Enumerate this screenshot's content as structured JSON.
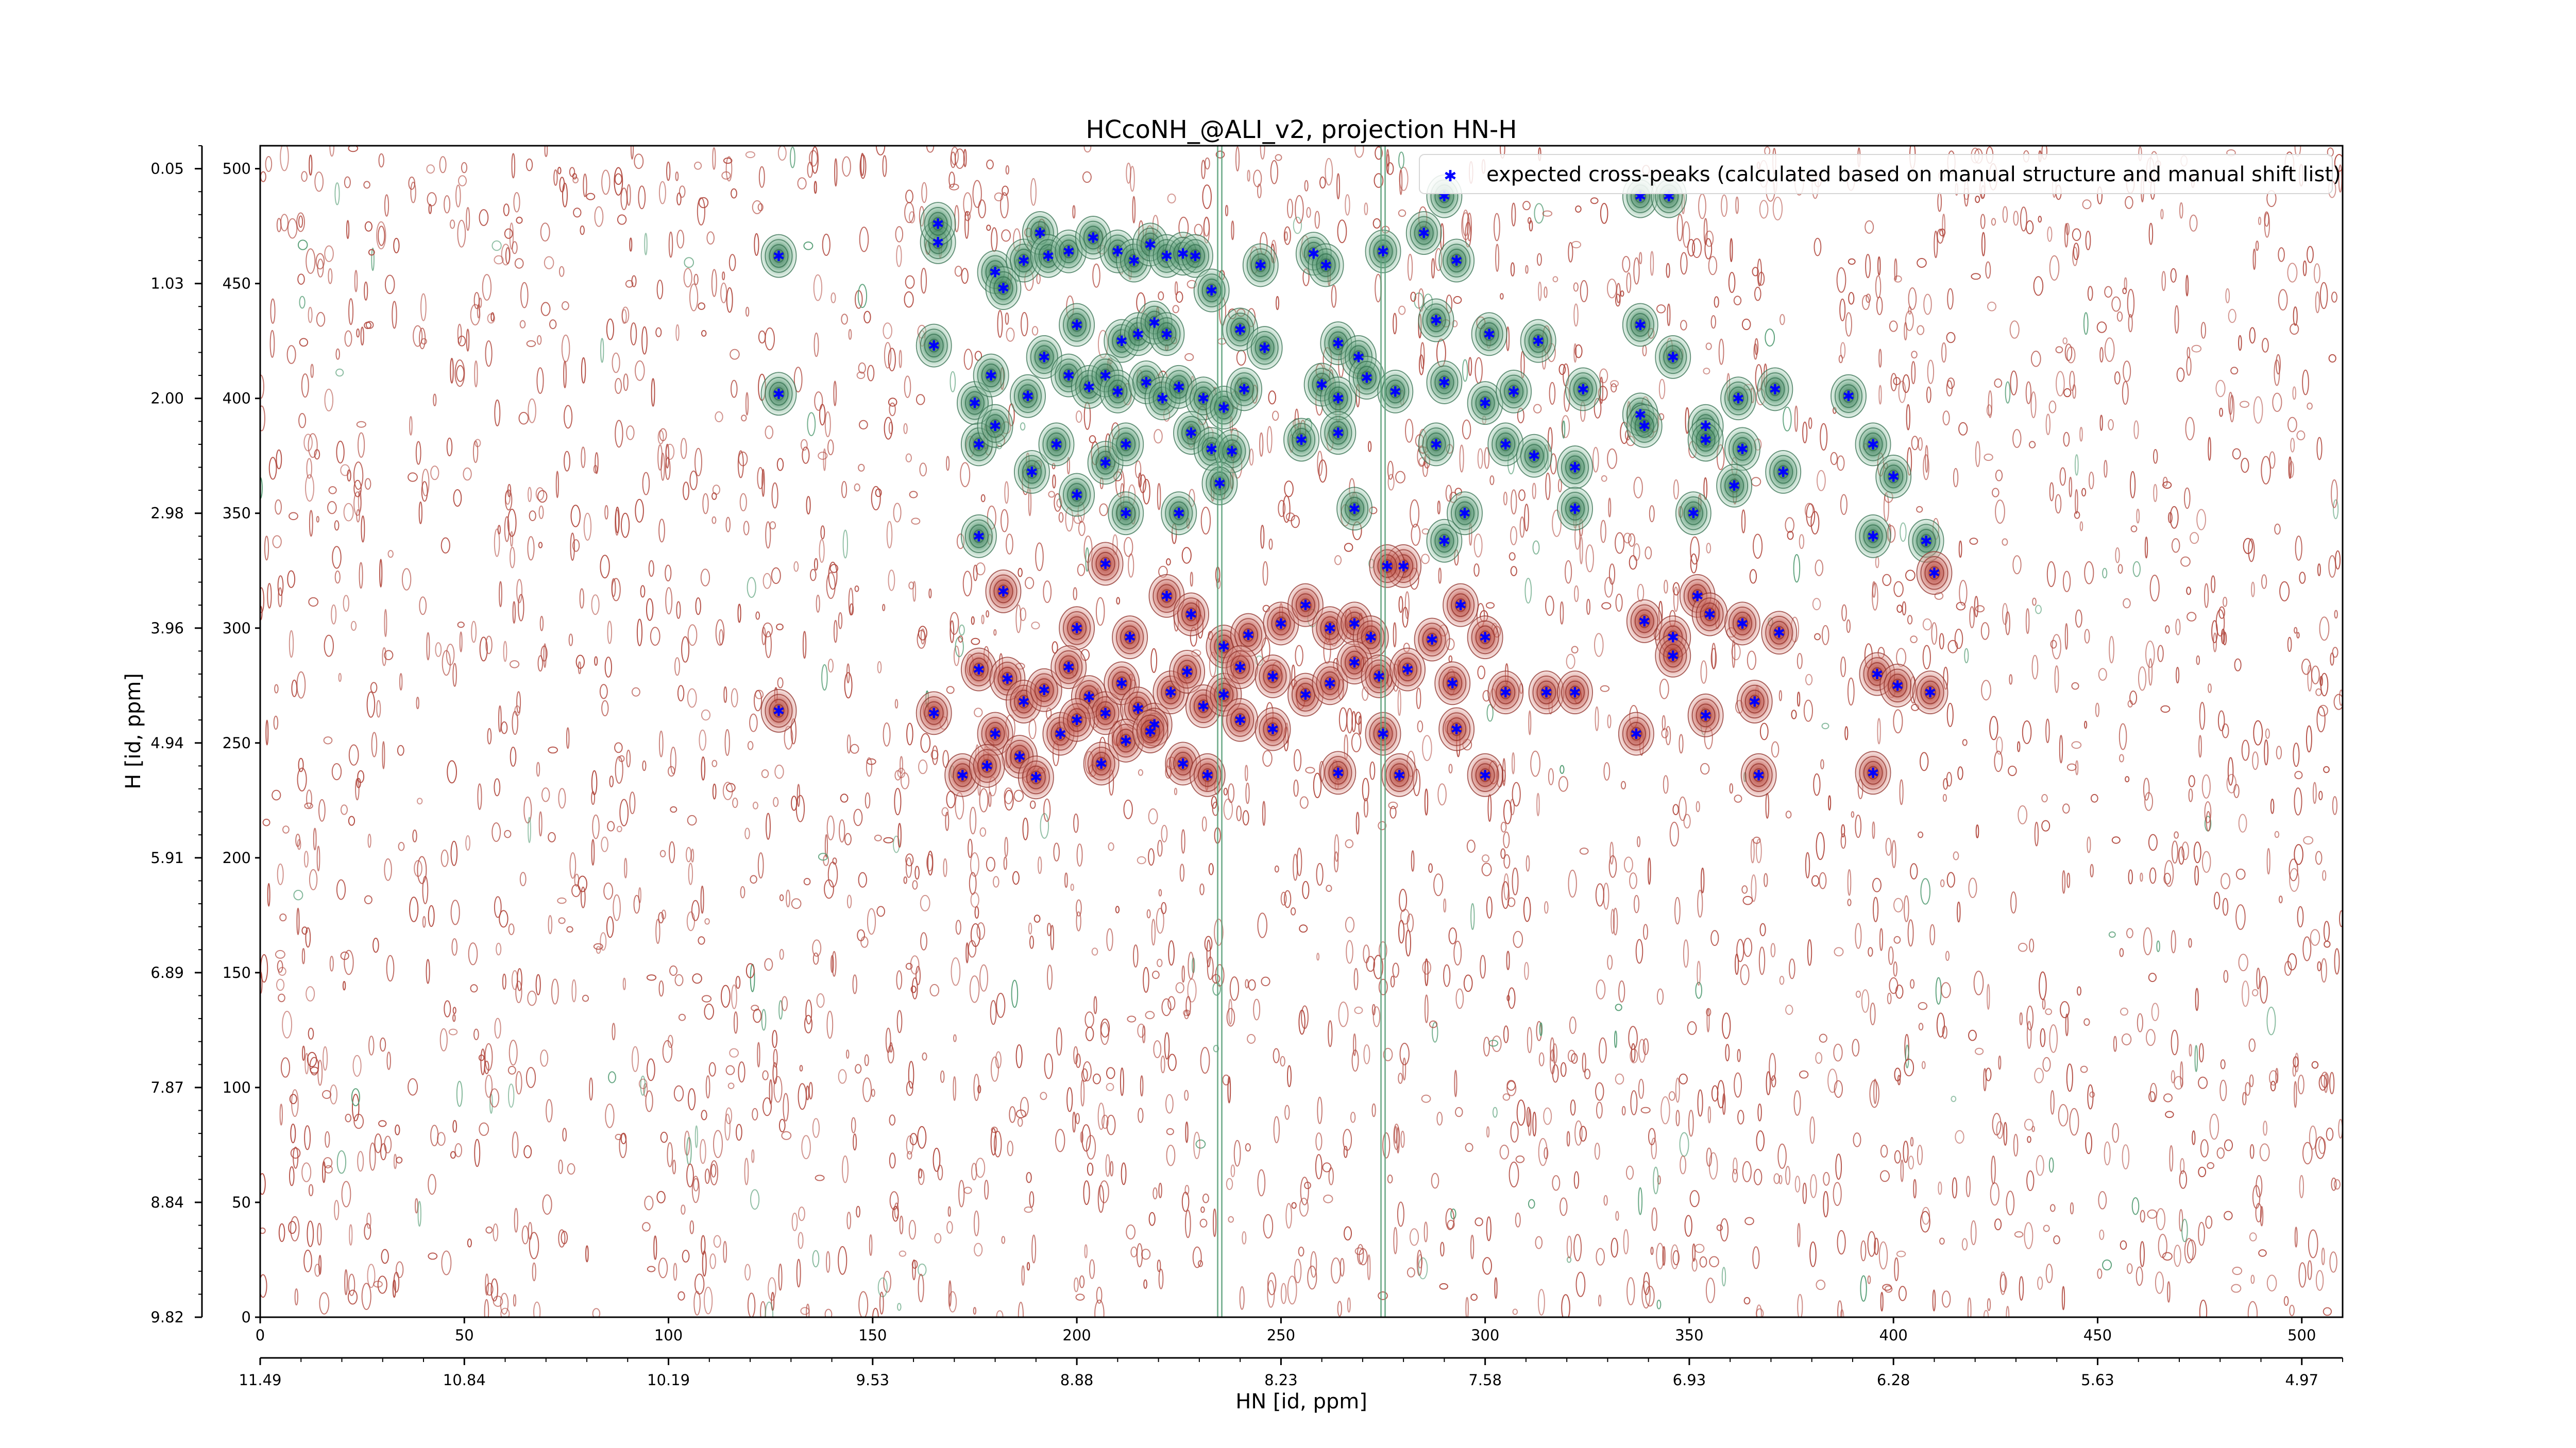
{
  "chart_data": {
    "type": "scatter",
    "title": "HCcoNH_@ALI_v2, projection HN-H",
    "xlabel": "HN [id, ppm]",
    "ylabel": "H [id, ppm]",
    "xlim": [
      0,
      510
    ],
    "ylim": [
      0,
      510
    ],
    "x_index_ticks": [
      0,
      50,
      100,
      150,
      200,
      250,
      300,
      350,
      400,
      450,
      500
    ],
    "x_ppm_ticks": [
      {
        "value": 0,
        "label": "11.49"
      },
      {
        "value": 50,
        "label": "10.84"
      },
      {
        "value": 100,
        "label": "10.19"
      },
      {
        "value": 150,
        "label": "9.53"
      },
      {
        "value": 200,
        "label": "8.88"
      },
      {
        "value": 250,
        "label": "8.23"
      },
      {
        "value": 300,
        "label": "7.58"
      },
      {
        "value": 350,
        "label": "6.93"
      },
      {
        "value": 400,
        "label": "6.28"
      },
      {
        "value": 450,
        "label": "5.63"
      },
      {
        "value": 500,
        "label": "4.97"
      }
    ],
    "y_index_ticks": [
      0,
      50,
      100,
      150,
      200,
      250,
      300,
      350,
      400,
      450,
      500
    ],
    "y_ppm_ticks": [
      {
        "value": 0,
        "label": "9.82"
      },
      {
        "value": 50,
        "label": "8.84"
      },
      {
        "value": 100,
        "label": "7.87"
      },
      {
        "value": 150,
        "label": "6.89"
      },
      {
        "value": 200,
        "label": "5.91"
      },
      {
        "value": 250,
        "label": "4.94"
      },
      {
        "value": 300,
        "label": "3.96"
      },
      {
        "value": 350,
        "label": "2.98"
      },
      {
        "value": 400,
        "label": "2.00"
      },
      {
        "value": 450,
        "label": "1.03"
      },
      {
        "value": 500,
        "label": "0.05"
      }
    ],
    "legend": {
      "label": "expected cross-peaks (calculated based on manual structure and manual shift list)",
      "placement": "top-right"
    },
    "colors": {
      "marker": "#0000ff",
      "positive_contour": "#a83228",
      "negative_contour": "#2e8b57"
    },
    "expected_peaks": [
      {
        "x": 127,
        "y": 462
      },
      {
        "x": 166,
        "y": 468
      },
      {
        "x": 166,
        "y": 476
      },
      {
        "x": 180,
        "y": 455
      },
      {
        "x": 187,
        "y": 460
      },
      {
        "x": 191,
        "y": 472
      },
      {
        "x": 193,
        "y": 462
      },
      {
        "x": 198,
        "y": 464
      },
      {
        "x": 204,
        "y": 470
      },
      {
        "x": 210,
        "y": 464
      },
      {
        "x": 214,
        "y": 460
      },
      {
        "x": 218,
        "y": 467
      },
      {
        "x": 222,
        "y": 462
      },
      {
        "x": 226,
        "y": 463
      },
      {
        "x": 229,
        "y": 462
      },
      {
        "x": 233,
        "y": 447
      },
      {
        "x": 245,
        "y": 458
      },
      {
        "x": 258,
        "y": 463
      },
      {
        "x": 261,
        "y": 458
      },
      {
        "x": 275,
        "y": 464
      },
      {
        "x": 285,
        "y": 472
      },
      {
        "x": 293,
        "y": 460
      },
      {
        "x": 338,
        "y": 488
      },
      {
        "x": 345,
        "y": 488
      },
      {
        "x": 290,
        "y": 488
      },
      {
        "x": 182,
        "y": 448
      },
      {
        "x": 200,
        "y": 432
      },
      {
        "x": 211,
        "y": 425
      },
      {
        "x": 215,
        "y": 428
      },
      {
        "x": 219,
        "y": 433
      },
      {
        "x": 222,
        "y": 428
      },
      {
        "x": 240,
        "y": 430
      },
      {
        "x": 246,
        "y": 422
      },
      {
        "x": 264,
        "y": 424
      },
      {
        "x": 269,
        "y": 418
      },
      {
        "x": 288,
        "y": 434
      },
      {
        "x": 301,
        "y": 428
      },
      {
        "x": 313,
        "y": 425
      },
      {
        "x": 338,
        "y": 432
      },
      {
        "x": 346,
        "y": 418
      },
      {
        "x": 165,
        "y": 423
      },
      {
        "x": 127,
        "y": 402
      },
      {
        "x": 175,
        "y": 398
      },
      {
        "x": 179,
        "y": 410
      },
      {
        "x": 188,
        "y": 401
      },
      {
        "x": 192,
        "y": 418
      },
      {
        "x": 198,
        "y": 410
      },
      {
        "x": 203,
        "y": 405
      },
      {
        "x": 207,
        "y": 410
      },
      {
        "x": 210,
        "y": 403
      },
      {
        "x": 217,
        "y": 407
      },
      {
        "x": 221,
        "y": 400
      },
      {
        "x": 225,
        "y": 405
      },
      {
        "x": 231,
        "y": 400
      },
      {
        "x": 236,
        "y": 396
      },
      {
        "x": 241,
        "y": 404
      },
      {
        "x": 260,
        "y": 406
      },
      {
        "x": 264,
        "y": 400
      },
      {
        "x": 271,
        "y": 409
      },
      {
        "x": 278,
        "y": 403
      },
      {
        "x": 290,
        "y": 407
      },
      {
        "x": 300,
        "y": 398
      },
      {
        "x": 307,
        "y": 403
      },
      {
        "x": 324,
        "y": 404
      },
      {
        "x": 338,
        "y": 393
      },
      {
        "x": 354,
        "y": 388
      },
      {
        "x": 362,
        "y": 400
      },
      {
        "x": 371,
        "y": 404
      },
      {
        "x": 389,
        "y": 401
      },
      {
        "x": 176,
        "y": 380
      },
      {
        "x": 180,
        "y": 388
      },
      {
        "x": 189,
        "y": 368
      },
      {
        "x": 195,
        "y": 380
      },
      {
        "x": 207,
        "y": 372
      },
      {
        "x": 212,
        "y": 380
      },
      {
        "x": 228,
        "y": 385
      },
      {
        "x": 233,
        "y": 378
      },
      {
        "x": 238,
        "y": 377
      },
      {
        "x": 255,
        "y": 382
      },
      {
        "x": 264,
        "y": 385
      },
      {
        "x": 288,
        "y": 380
      },
      {
        "x": 305,
        "y": 380
      },
      {
        "x": 312,
        "y": 375
      },
      {
        "x": 322,
        "y": 370
      },
      {
        "x": 339,
        "y": 388
      },
      {
        "x": 354,
        "y": 382
      },
      {
        "x": 363,
        "y": 378
      },
      {
        "x": 373,
        "y": 368
      },
      {
        "x": 395,
        "y": 380
      },
      {
        "x": 400,
        "y": 366
      },
      {
        "x": 176,
        "y": 340
      },
      {
        "x": 200,
        "y": 358
      },
      {
        "x": 212,
        "y": 350
      },
      {
        "x": 225,
        "y": 350
      },
      {
        "x": 235,
        "y": 363
      },
      {
        "x": 268,
        "y": 352
      },
      {
        "x": 280,
        "y": 327
      },
      {
        "x": 290,
        "y": 338
      },
      {
        "x": 295,
        "y": 350
      },
      {
        "x": 322,
        "y": 352
      },
      {
        "x": 351,
        "y": 350
      },
      {
        "x": 361,
        "y": 362
      },
      {
        "x": 395,
        "y": 340
      },
      {
        "x": 408,
        "y": 338
      },
      {
        "x": 410,
        "y": 324
      },
      {
        "x": 276,
        "y": 327
      },
      {
        "x": 182,
        "y": 316
      },
      {
        "x": 200,
        "y": 300
      },
      {
        "x": 207,
        "y": 328
      },
      {
        "x": 213,
        "y": 296
      },
      {
        "x": 222,
        "y": 314
      },
      {
        "x": 228,
        "y": 306
      },
      {
        "x": 236,
        "y": 292
      },
      {
        "x": 242,
        "y": 297
      },
      {
        "x": 250,
        "y": 302
      },
      {
        "x": 256,
        "y": 310
      },
      {
        "x": 262,
        "y": 300
      },
      {
        "x": 268,
        "y": 302
      },
      {
        "x": 272,
        "y": 296
      },
      {
        "x": 287,
        "y": 295
      },
      {
        "x": 294,
        "y": 310
      },
      {
        "x": 300,
        "y": 296
      },
      {
        "x": 339,
        "y": 303
      },
      {
        "x": 346,
        "y": 296
      },
      {
        "x": 352,
        "y": 314
      },
      {
        "x": 355,
        "y": 306
      },
      {
        "x": 363,
        "y": 302
      },
      {
        "x": 372,
        "y": 298
      },
      {
        "x": 127,
        "y": 264
      },
      {
        "x": 165,
        "y": 263
      },
      {
        "x": 176,
        "y": 282
      },
      {
        "x": 183,
        "y": 278
      },
      {
        "x": 187,
        "y": 268
      },
      {
        "x": 192,
        "y": 273
      },
      {
        "x": 198,
        "y": 283
      },
      {
        "x": 203,
        "y": 270
      },
      {
        "x": 207,
        "y": 263
      },
      {
        "x": 211,
        "y": 276
      },
      {
        "x": 215,
        "y": 265
      },
      {
        "x": 219,
        "y": 258
      },
      {
        "x": 223,
        "y": 272
      },
      {
        "x": 227,
        "y": 281
      },
      {
        "x": 231,
        "y": 266
      },
      {
        "x": 236,
        "y": 271
      },
      {
        "x": 240,
        "y": 283
      },
      {
        "x": 248,
        "y": 279
      },
      {
        "x": 256,
        "y": 271
      },
      {
        "x": 262,
        "y": 276
      },
      {
        "x": 268,
        "y": 285
      },
      {
        "x": 274,
        "y": 279
      },
      {
        "x": 281,
        "y": 282
      },
      {
        "x": 292,
        "y": 276
      },
      {
        "x": 305,
        "y": 272
      },
      {
        "x": 315,
        "y": 272
      },
      {
        "x": 322,
        "y": 272
      },
      {
        "x": 346,
        "y": 288
      },
      {
        "x": 354,
        "y": 262
      },
      {
        "x": 366,
        "y": 268
      },
      {
        "x": 396,
        "y": 280
      },
      {
        "x": 401,
        "y": 275
      },
      {
        "x": 409,
        "y": 272
      },
      {
        "x": 180,
        "y": 254
      },
      {
        "x": 186,
        "y": 244
      },
      {
        "x": 190,
        "y": 235
      },
      {
        "x": 196,
        "y": 254
      },
      {
        "x": 200,
        "y": 260
      },
      {
        "x": 206,
        "y": 241
      },
      {
        "x": 212,
        "y": 251
      },
      {
        "x": 218,
        "y": 255
      },
      {
        "x": 226,
        "y": 241
      },
      {
        "x": 232,
        "y": 236
      },
      {
        "x": 240,
        "y": 260
      },
      {
        "x": 248,
        "y": 256
      },
      {
        "x": 264,
        "y": 237
      },
      {
        "x": 275,
        "y": 254
      },
      {
        "x": 279,
        "y": 236
      },
      {
        "x": 293,
        "y": 256
      },
      {
        "x": 300,
        "y": 236
      },
      {
        "x": 337,
        "y": 254
      },
      {
        "x": 367,
        "y": 236
      },
      {
        "x": 395,
        "y": 237
      },
      {
        "x": 172,
        "y": 236
      },
      {
        "x": 178,
        "y": 240
      }
    ]
  }
}
